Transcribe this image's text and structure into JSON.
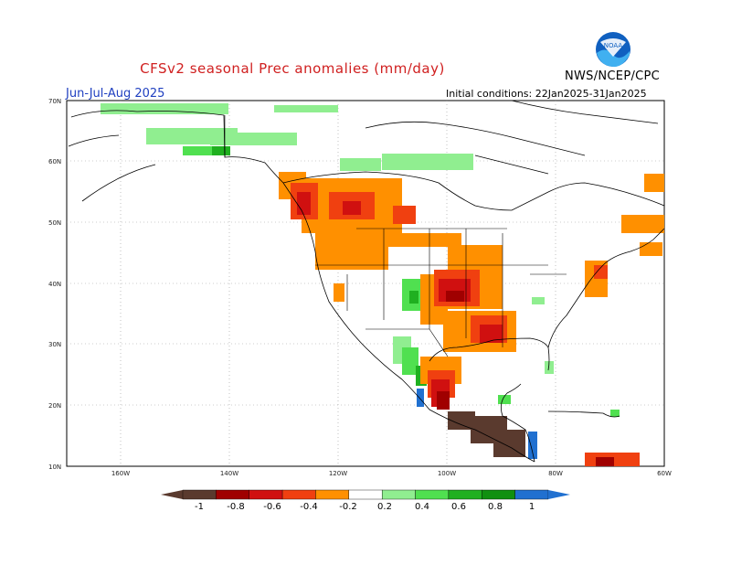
{
  "title": "CFSv2 seasonal Prec anomalies (mm/day)",
  "season": "Jun-Jul-Aug 2025",
  "initial_conditions": "Initial conditions: 22Jan2025-31Jan2025",
  "agency": "NWS/NCEP/CPC",
  "logo_text": "NOAA",
  "colors": {
    "title": "#d02020",
    "season": "#2040c0"
  },
  "lat_labels": [
    "70N",
    "60N",
    "50N",
    "40N",
    "30N",
    "20N",
    "10N"
  ],
  "lon_labels": [
    "160W",
    "140W",
    "120W",
    "100W",
    "80W",
    "60W"
  ],
  "colorbar": {
    "labels": [
      "-1",
      "-0.8",
      "-0.6",
      "-0.4",
      "-0.2",
      "0.2",
      "0.4",
      "0.6",
      "0.8",
      "1"
    ],
    "colors": [
      "#5a3a2e",
      "#a00000",
      "#d01010",
      "#f04010",
      "#ff9000",
      "#ffffff",
      "#90ee90",
      "#50e050",
      "#20b020",
      "#109010",
      "#2070d0"
    ]
  }
}
